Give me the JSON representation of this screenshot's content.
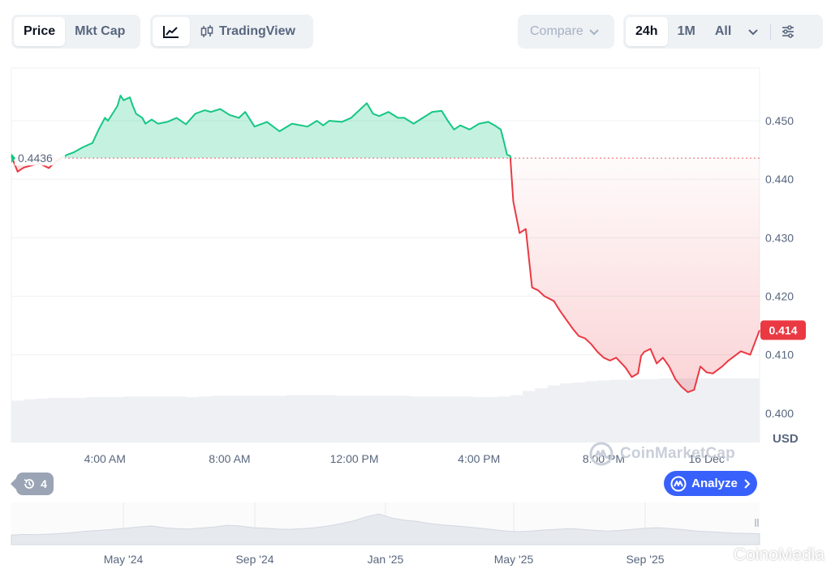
{
  "toolbar": {
    "price_label": "Price",
    "mktcap_label": "Mkt Cap",
    "tradingview_label": "TradingView",
    "compare_label": "Compare",
    "range_24h": "24h",
    "range_1m": "1M",
    "range_all": "All"
  },
  "chart_data": {
    "type": "area",
    "currency_label": "USD",
    "baseline": 0.4436,
    "baseline_label": "0.4436",
    "current_price_label": "0.414",
    "ylim": [
      0.395,
      0.459
    ],
    "yticks": [
      0.4,
      0.41,
      0.42,
      0.43,
      0.44,
      0.45
    ],
    "ytick_labels": [
      "0.400",
      "0.410",
      "0.420",
      "0.430",
      "0.440",
      "0.450"
    ],
    "xlim": [
      0,
      24
    ],
    "xticks": [
      3,
      7,
      11,
      15,
      19,
      22.3
    ],
    "xtick_labels": [
      "4:00 AM",
      "8:00 AM",
      "12:00 PM",
      "4:00 PM",
      "8:00 PM",
      "16 Dec"
    ],
    "x_unit": "hours since chart start",
    "series": [
      {
        "x": [
          0.0,
          0.2,
          0.4,
          0.6,
          0.9,
          1.2,
          1.5,
          1.8,
          2.0,
          2.3,
          2.6,
          2.8,
          3.0,
          3.1,
          3.4,
          3.5,
          3.6,
          3.8,
          3.9,
          4.0,
          4.2,
          4.3,
          4.5,
          4.7,
          5.0,
          5.3,
          5.6,
          5.9,
          6.2,
          6.4,
          6.7,
          7.0,
          7.3,
          7.5,
          7.8,
          8.2,
          8.6,
          9.0,
          9.5,
          9.8,
          10.0,
          10.2,
          10.6,
          10.9,
          11.2,
          11.4,
          11.6,
          11.8,
          12.1,
          12.4,
          12.6,
          12.9,
          13.2,
          13.5,
          13.8,
          14.0,
          14.2,
          14.4,
          14.7,
          15.0,
          15.3,
          15.5,
          15.7,
          15.8,
          15.9,
          16.0,
          16.1,
          16.3,
          16.5,
          16.7,
          16.9,
          17.1,
          17.4,
          17.6,
          17.8,
          18.0,
          18.2,
          18.4,
          18.6,
          18.8,
          19.0,
          19.2,
          19.4,
          19.7,
          19.9,
          20.1,
          20.2,
          20.3,
          20.5,
          20.7,
          20.9,
          21.1,
          21.3,
          21.5,
          21.7,
          21.9,
          22.1,
          22.3,
          22.5,
          22.8,
          23.0,
          23.2,
          23.4,
          23.7,
          24.0
        ],
        "values": [
          0.444,
          0.4413,
          0.442,
          0.4423,
          0.4427,
          0.4419,
          0.4433,
          0.4442,
          0.4446,
          0.4455,
          0.4462,
          0.4485,
          0.4505,
          0.45,
          0.4525,
          0.4543,
          0.4535,
          0.454,
          0.4525,
          0.4512,
          0.4505,
          0.4495,
          0.4502,
          0.4495,
          0.4498,
          0.4505,
          0.4494,
          0.4512,
          0.4518,
          0.4515,
          0.452,
          0.451,
          0.4505,
          0.4515,
          0.449,
          0.4498,
          0.4482,
          0.4495,
          0.449,
          0.45,
          0.4492,
          0.45,
          0.4498,
          0.4505,
          0.452,
          0.453,
          0.4512,
          0.4508,
          0.4515,
          0.4505,
          0.4505,
          0.4495,
          0.4505,
          0.4515,
          0.4517,
          0.45,
          0.4485,
          0.4492,
          0.4485,
          0.4495,
          0.4498,
          0.4492,
          0.4485,
          0.4464,
          0.4442,
          0.444,
          0.4362,
          0.4308,
          0.4315,
          0.4215,
          0.421,
          0.42,
          0.4192,
          0.4175,
          0.416,
          0.4145,
          0.4132,
          0.4128,
          0.4118,
          0.4105,
          0.4095,
          0.409,
          0.4095,
          0.4078,
          0.4062,
          0.4068,
          0.4098,
          0.4105,
          0.411,
          0.4085,
          0.4095,
          0.408,
          0.4058,
          0.4045,
          0.4036,
          0.404,
          0.408,
          0.407,
          0.4068,
          0.408,
          0.409,
          0.4098,
          0.4106,
          0.41,
          0.4142
        ]
      }
    ],
    "volume": [
      0.6,
      0.62,
      0.63,
      0.64,
      0.64,
      0.64,
      0.65,
      0.65,
      0.65,
      0.66,
      0.66,
      0.66,
      0.66,
      0.66,
      0.65,
      0.66,
      0.67,
      0.67,
      0.67,
      0.67,
      0.67,
      0.67,
      0.68,
      0.68,
      0.68,
      0.68,
      0.67,
      0.67,
      0.67,
      0.67,
      0.67,
      0.67,
      0.66,
      0.66,
      0.66,
      0.66,
      0.66,
      0.65,
      0.65,
      0.66,
      0.68,
      0.74,
      0.78,
      0.82,
      0.85,
      0.86,
      0.88,
      0.89,
      0.9,
      0.9,
      0.91,
      0.91,
      0.92,
      0.92,
      0.92,
      0.92,
      0.92,
      0.92,
      0.92,
      0.92
    ],
    "navigator": {
      "xtick_labels": [
        "May '24",
        "Sep '24",
        "Jan '25",
        "May '25",
        "Sep '25"
      ],
      "values": [
        0.28,
        0.3,
        0.29,
        0.31,
        0.33,
        0.36,
        0.4,
        0.42,
        0.45,
        0.48,
        0.52,
        0.55,
        0.5,
        0.47,
        0.46,
        0.49,
        0.52,
        0.57,
        0.55,
        0.5,
        0.48,
        0.46,
        0.45,
        0.47,
        0.5,
        0.55,
        0.62,
        0.7,
        0.82,
        0.9,
        0.78,
        0.72,
        0.68,
        0.62,
        0.58,
        0.55,
        0.52,
        0.48,
        0.44,
        0.4,
        0.38,
        0.4,
        0.43,
        0.45,
        0.47,
        0.45,
        0.42,
        0.4,
        0.42,
        0.45,
        0.48,
        0.5,
        0.47,
        0.44,
        0.4,
        0.38,
        0.36,
        0.34,
        0.33,
        0.32
      ]
    }
  },
  "history_badge": {
    "count": "4"
  },
  "analyze_label": "Analyze",
  "watermark_brand": "CoinMarketCap",
  "media_watermark": "CoinoMedia",
  "colors": {
    "up": "#16c784",
    "down": "#ea3943",
    "accent": "#3861fb"
  }
}
